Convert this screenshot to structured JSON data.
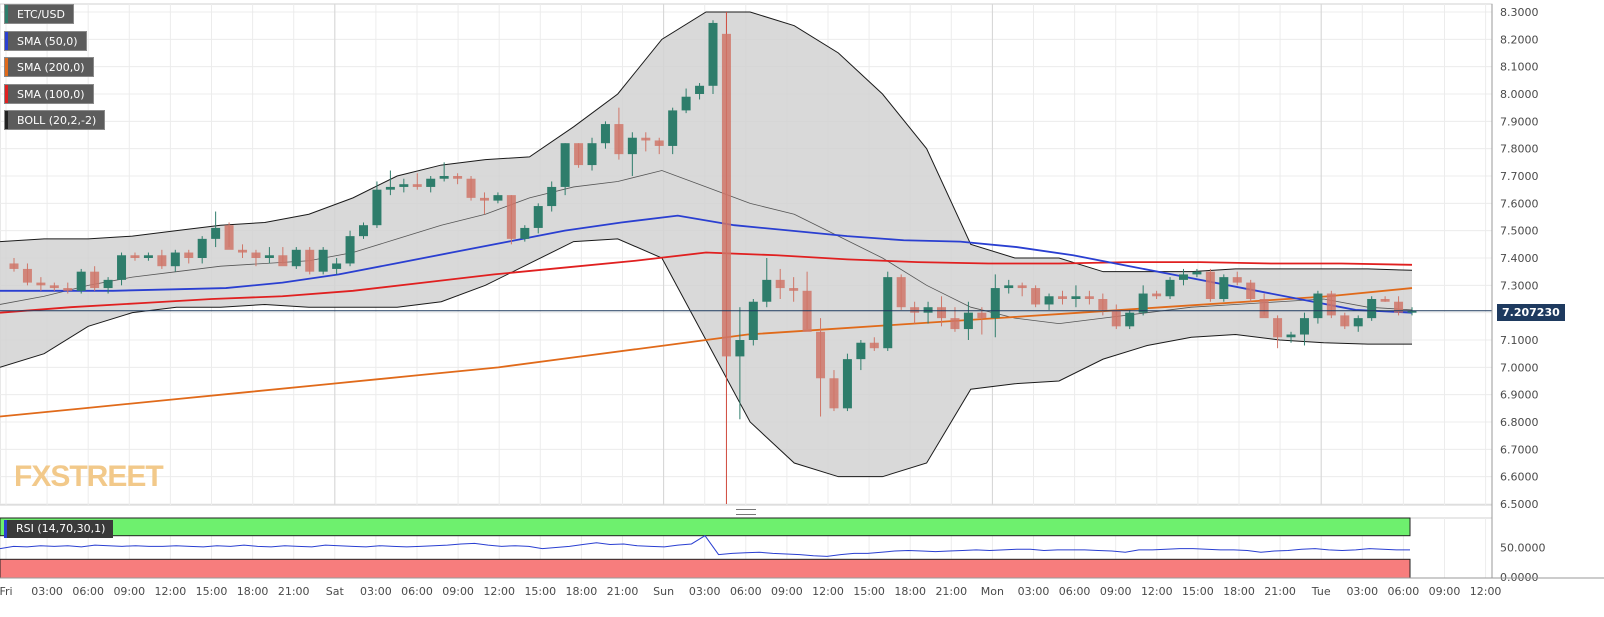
{
  "legends": [
    {
      "label": "ETC/USD",
      "color": "#2e7d6b"
    },
    {
      "label": "SMA (50,0)",
      "color": "#2a3fd1"
    },
    {
      "label": "SMA (200,0)",
      "color": "#e06a1a"
    },
    {
      "label": "SMA (100,0)",
      "color": "#e02020"
    },
    {
      "label": "BOLL (20,2,-2)",
      "color": "#222222"
    }
  ],
  "rsi_legend": {
    "label": "RSI (14,70,30,1)",
    "color": "#2a3fd1"
  },
  "watermark": "FXSTREET",
  "last_price_label": "7.207230",
  "chart_data": {
    "type": "candlestick",
    "symbol": "ETC/USD",
    "ylim": [
      6.5,
      8.3
    ],
    "y_ticks": [
      "8.3000",
      "8.2000",
      "8.1000",
      "8.0000",
      "7.9000",
      "7.8000",
      "7.7000",
      "7.6000",
      "7.5000",
      "7.4000",
      "7.3000",
      "7.2000",
      "7.1000",
      "7.0000",
      "6.9000",
      "6.8000",
      "6.7000",
      "6.6000",
      "6.5000"
    ],
    "x_ticks": [
      "Fri",
      "03:00",
      "06:00",
      "09:00",
      "12:00",
      "15:00",
      "18:00",
      "21:00",
      "Sat",
      "03:00",
      "06:00",
      "09:00",
      "12:00",
      "15:00",
      "18:00",
      "21:00",
      "Sun",
      "03:00",
      "06:00",
      "09:00",
      "12:00",
      "15:00",
      "18:00",
      "21:00",
      "Mon",
      "03:00",
      "06:00",
      "09:00",
      "12:00",
      "15:00",
      "18:00",
      "21:00",
      "Tue",
      "03:00",
      "06:00",
      "09:00",
      "12:00"
    ],
    "last_price": 7.20723,
    "candles": [
      [
        7.38,
        7.4,
        7.35,
        7.36
      ],
      [
        7.36,
        7.38,
        7.3,
        7.31
      ],
      [
        7.31,
        7.33,
        7.28,
        7.3
      ],
      [
        7.3,
        7.31,
        7.28,
        7.29
      ],
      [
        7.29,
        7.31,
        7.27,
        7.28
      ],
      [
        7.28,
        7.36,
        7.27,
        7.35
      ],
      [
        7.35,
        7.37,
        7.28,
        7.29
      ],
      [
        7.29,
        7.33,
        7.27,
        7.32
      ],
      [
        7.32,
        7.42,
        7.3,
        7.41
      ],
      [
        7.41,
        7.42,
        7.39,
        7.4
      ],
      [
        7.4,
        7.42,
        7.39,
        7.41
      ],
      [
        7.41,
        7.43,
        7.36,
        7.37
      ],
      [
        7.37,
        7.43,
        7.35,
        7.42
      ],
      [
        7.42,
        7.43,
        7.38,
        7.4
      ],
      [
        7.4,
        7.48,
        7.38,
        7.47
      ],
      [
        7.47,
        7.57,
        7.44,
        7.51
      ],
      [
        7.52,
        7.53,
        7.44,
        7.43
      ],
      [
        7.43,
        7.45,
        7.4,
        7.42
      ],
      [
        7.42,
        7.43,
        7.37,
        7.4
      ],
      [
        7.4,
        7.44,
        7.38,
        7.41
      ],
      [
        7.41,
        7.44,
        7.38,
        7.37
      ],
      [
        7.37,
        7.44,
        7.36,
        7.43
      ],
      [
        7.43,
        7.44,
        7.34,
        7.35
      ],
      [
        7.35,
        7.44,
        7.34,
        7.43
      ],
      [
        7.36,
        7.4,
        7.34,
        7.38
      ],
      [
        7.38,
        7.5,
        7.37,
        7.48
      ],
      [
        7.48,
        7.53,
        7.47,
        7.52
      ],
      [
        7.52,
        7.68,
        7.51,
        7.65
      ],
      [
        7.65,
        7.72,
        7.63,
        7.66
      ],
      [
        7.66,
        7.69,
        7.64,
        7.67
      ],
      [
        7.67,
        7.71,
        7.65,
        7.66
      ],
      [
        7.66,
        7.7,
        7.64,
        7.69
      ],
      [
        7.69,
        7.75,
        7.68,
        7.7
      ],
      [
        7.7,
        7.71,
        7.67,
        7.69
      ],
      [
        7.69,
        7.7,
        7.61,
        7.62
      ],
      [
        7.62,
        7.64,
        7.56,
        7.61
      ],
      [
        7.61,
        7.64,
        7.6,
        7.63
      ],
      [
        7.63,
        7.63,
        7.45,
        7.47
      ],
      [
        7.47,
        7.52,
        7.46,
        7.51
      ],
      [
        7.51,
        7.6,
        7.49,
        7.59
      ],
      [
        7.59,
        7.68,
        7.57,
        7.66
      ],
      [
        7.66,
        7.82,
        7.63,
        7.82
      ],
      [
        7.82,
        7.82,
        7.73,
        7.74
      ],
      [
        7.74,
        7.84,
        7.72,
        7.82
      ],
      [
        7.82,
        7.9,
        7.8,
        7.89
      ],
      [
        7.89,
        7.95,
        7.76,
        7.78
      ],
      [
        7.78,
        7.86,
        7.7,
        7.84
      ],
      [
        7.84,
        7.86,
        7.79,
        7.83
      ],
      [
        7.83,
        7.84,
        7.78,
        7.81
      ],
      [
        7.81,
        7.95,
        7.78,
        7.94
      ],
      [
        7.94,
        8.02,
        7.93,
        7.99
      ],
      [
        8.0,
        8.04,
        7.98,
        8.03
      ],
      [
        8.03,
        8.27,
        8.0,
        8.26
      ],
      [
        8.22,
        8.3,
        6.5,
        7.04
      ],
      [
        7.04,
        7.22,
        6.81,
        7.1
      ],
      [
        7.1,
        7.25,
        7.08,
        7.24
      ],
      [
        7.24,
        7.4,
        7.22,
        7.32
      ],
      [
        7.32,
        7.36,
        7.25,
        7.29
      ],
      [
        7.29,
        7.33,
        7.24,
        7.28
      ],
      [
        7.28,
        7.35,
        7.14,
        7.13
      ],
      [
        7.13,
        7.18,
        6.82,
        6.96
      ],
      [
        6.96,
        6.99,
        6.84,
        6.85
      ],
      [
        6.85,
        7.05,
        6.84,
        7.03
      ],
      [
        7.03,
        7.1,
        6.99,
        7.09
      ],
      [
        7.09,
        7.11,
        7.06,
        7.07
      ],
      [
        7.07,
        7.35,
        7.06,
        7.33
      ],
      [
        7.33,
        7.34,
        7.21,
        7.22
      ],
      [
        7.22,
        7.24,
        7.16,
        7.2
      ],
      [
        7.2,
        7.24,
        7.16,
        7.22
      ],
      [
        7.22,
        7.26,
        7.15,
        7.18
      ],
      [
        7.18,
        7.22,
        7.13,
        7.14
      ],
      [
        7.14,
        7.24,
        7.1,
        7.2
      ],
      [
        7.2,
        7.22,
        7.12,
        7.18
      ],
      [
        7.18,
        7.34,
        7.11,
        7.29
      ],
      [
        7.29,
        7.32,
        7.27,
        7.3
      ],
      [
        7.3,
        7.31,
        7.26,
        7.29
      ],
      [
        7.29,
        7.3,
        7.22,
        7.23
      ],
      [
        7.23,
        7.27,
        7.21,
        7.26
      ],
      [
        7.26,
        7.28,
        7.23,
        7.25
      ],
      [
        7.25,
        7.3,
        7.22,
        7.26
      ],
      [
        7.26,
        7.28,
        7.23,
        7.25
      ],
      [
        7.25,
        7.27,
        7.19,
        7.21
      ],
      [
        7.21,
        7.23,
        7.14,
        7.15
      ],
      [
        7.15,
        7.21,
        7.14,
        7.2
      ],
      [
        7.2,
        7.3,
        7.19,
        7.27
      ],
      [
        7.27,
        7.28,
        7.25,
        7.26
      ],
      [
        7.26,
        7.33,
        7.25,
        7.32
      ],
      [
        7.32,
        7.36,
        7.3,
        7.34
      ],
      [
        7.34,
        7.36,
        7.33,
        7.35
      ],
      [
        7.35,
        7.36,
        7.24,
        7.25
      ],
      [
        7.25,
        7.34,
        7.24,
        7.33
      ],
      [
        7.33,
        7.35,
        7.3,
        7.31
      ],
      [
        7.31,
        7.32,
        7.24,
        7.25
      ],
      [
        7.25,
        7.27,
        7.19,
        7.18
      ],
      [
        7.18,
        7.19,
        7.07,
        7.11
      ],
      [
        7.11,
        7.13,
        7.09,
        7.12
      ],
      [
        7.12,
        7.2,
        7.08,
        7.18
      ],
      [
        7.18,
        7.28,
        7.16,
        7.27
      ],
      [
        7.27,
        7.28,
        7.18,
        7.19
      ],
      [
        7.19,
        7.2,
        7.14,
        7.15
      ],
      [
        7.15,
        7.19,
        7.13,
        7.18
      ],
      [
        7.18,
        7.26,
        7.17,
        7.25
      ],
      [
        7.25,
        7.26,
        7.24,
        7.24
      ],
      [
        7.24,
        7.26,
        7.19,
        7.2
      ],
      [
        7.2,
        7.22,
        7.19,
        7.207
      ]
    ],
    "sma50_series": [
      7.28,
      7.28,
      7.28,
      7.285,
      7.29,
      7.31,
      7.34,
      7.38,
      7.42,
      7.46,
      7.5,
      7.53,
      7.555,
      7.52,
      7.5,
      7.48,
      7.465,
      7.46,
      7.44,
      7.41,
      7.37,
      7.33,
      7.29,
      7.25,
      7.21,
      7.2
    ],
    "sma100_series": [
      7.2,
      7.22,
      7.235,
      7.25,
      7.26,
      7.28,
      7.31,
      7.34,
      7.365,
      7.39,
      7.42,
      7.41,
      7.395,
      7.385,
      7.38,
      7.38,
      7.385,
      7.385,
      7.38,
      7.38,
      7.375
    ],
    "sma200_series": [
      6.82,
      6.85,
      6.88,
      6.91,
      6.94,
      6.97,
      7.0,
      7.04,
      7.08,
      7.12,
      7.14,
      7.16,
      7.18,
      7.2,
      7.22,
      7.24,
      7.26,
      7.29
    ],
    "boll_upper": [
      7.46,
      7.47,
      7.47,
      7.48,
      7.5,
      7.52,
      7.53,
      7.56,
      7.62,
      7.7,
      7.74,
      7.76,
      7.77,
      7.88,
      8.0,
      8.2,
      8.3,
      8.3,
      8.25,
      8.15,
      8.0,
      7.8,
      7.45,
      7.4,
      7.4,
      7.35,
      7.35,
      7.35,
      7.36,
      7.36,
      7.36,
      7.36,
      7.355
    ],
    "boll_lower": [
      7.0,
      7.05,
      7.15,
      7.2,
      7.22,
      7.22,
      7.23,
      7.22,
      7.22,
      7.22,
      7.24,
      7.3,
      7.38,
      7.46,
      7.47,
      7.4,
      7.1,
      6.8,
      6.65,
      6.6,
      6.6,
      6.65,
      6.92,
      6.94,
      6.95,
      7.03,
      7.08,
      7.11,
      7.12,
      7.1,
      7.09,
      7.085,
      7.085
    ],
    "boll_mid": [
      7.23,
      7.26,
      7.3,
      7.33,
      7.35,
      7.37,
      7.38,
      7.39,
      7.42,
      7.47,
      7.52,
      7.56,
      7.62,
      7.66,
      7.68,
      7.72,
      7.66,
      7.6,
      7.56,
      7.48,
      7.4,
      7.3,
      7.22,
      7.18,
      7.16,
      7.18,
      7.2,
      7.22,
      7.23,
      7.24,
      7.25,
      7.22,
      7.21
    ],
    "rsi": {
      "ylim": [
        0,
        100
      ],
      "y_ticks": [
        "50.0000",
        "0.0000"
      ],
      "overbought": 70,
      "oversold": 30,
      "values": [
        48,
        52,
        51,
        53,
        52,
        53,
        51,
        54,
        53,
        52,
        53,
        52,
        52,
        53,
        52,
        51,
        53,
        52,
        54,
        52,
        51,
        53,
        52,
        51,
        54,
        53,
        52,
        51,
        53,
        52,
        51,
        52,
        53,
        54,
        56,
        57,
        54,
        52,
        53,
        52,
        48,
        50,
        52,
        55,
        58,
        55,
        56,
        53,
        52,
        51,
        54,
        56,
        70,
        38,
        40,
        41,
        42,
        40,
        39,
        38,
        36,
        35,
        38,
        40,
        40,
        42,
        44,
        45,
        44,
        43,
        44,
        45,
        46,
        45,
        46,
        47,
        47,
        45,
        46,
        46,
        46,
        45,
        44,
        42,
        46,
        46,
        47,
        48,
        48,
        47,
        46,
        46,
        45,
        42,
        44,
        45,
        47,
        48,
        46,
        45,
        46,
        48,
        47,
        46,
        46
      ]
    }
  }
}
